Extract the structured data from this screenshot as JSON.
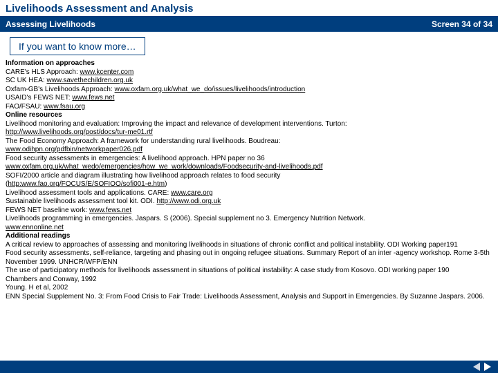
{
  "header": {
    "title": "Livelihoods Assessment and Analysis",
    "subtitle": "Assessing Livelihoods",
    "screen": "Screen 34 of 34"
  },
  "callout": "If you want to know more…",
  "sections": {
    "approaches": {
      "heading": "Information on approaches",
      "items": [
        {
          "label": "CARE's HLS Approach: ",
          "link": "www.kcenter.com"
        },
        {
          "label": "SC UK HEA: ",
          "link": "www.savethechildren.org.uk"
        },
        {
          "label": "Oxfam-GB's Livelihoods Approach: ",
          "link": "www.oxfam.org.uk/what_we_do/issues/livelihoods/introduction"
        },
        {
          "label": "USAID's FEWS NET: ",
          "link": "www.fews.net"
        },
        {
          "label": "FAO/FSAU: ",
          "link": "www.fsau.org"
        }
      ]
    },
    "online": {
      "heading": "Online resources",
      "l1": "Livelihood monitoring and evaluation: Improving the impact and relevance of development interventions. Turton: ",
      "l1link": "http://www.livelihoods.org/post/docs/tur-me01.rtf",
      "l2": "The Food Economy Approach: A framework for understanding rural livelihoods. Boudreau: ",
      "l2link": "www.odihpn.org/pdfbin/networkpaper026.pdf",
      "l3": "Food security assessments in emergencies: A livelihood approach. HPN paper no 36",
      "l3link": "www.oxfam.org.uk/what_wedo/emergencies/how_we_work/downloads/Foodsecurity-and-livelihoods.pdf",
      "l4": "SOFI/2000 article and diagram illustrating how livelihood approach relates to food security",
      "l4l": "(",
      "l4link": "http:www.fao.org/FOCUS/E/SOFIOO/sofi001-e.htm",
      "l4r": ")",
      "l5": "Livelihood assessment tools and applications. CARE: ",
      "l5link": "www.care.org",
      "l6": "Sustainable livelihoods assessment tool kit. ODI. ",
      "l6link": "http://www.odi.org.uk",
      "l7": "FEWS NET baseline work: ",
      "l7link": "www.fews.net",
      "l8": "Livelihoods programming in emergencies. Jaspars. S (2006). Special supplement no 3. Emergency Nutrition Network.",
      "l8link": "www.ennonline.net"
    },
    "readings": {
      "heading": "Additional readings",
      "r1": "A critical review to approaches of assessing and monitoring livelihoods in situations of chronic conflict and political instability. ODI Working paper191",
      "r2": "Food security assessments, self-reliance, targeting and phasing out in ongoing refugee situations. Summary Report of an inter -agency workshop. Rome 3-5th November 1999. UNHCR/WFP/ENN",
      "r3": "The use of participatory methods for livelihoods assessment in situations of political instability: A case study from Kosovo. ODI working paper 190",
      "r4": "Chambers and Conway, 1992",
      "r5": "Young. H et al, 2002",
      "r6": "ENN Special Supplement No. 3:  From Food Crisis to Fair Trade: Livelihoods Assessment, Analysis and Support in Emergencies. By Suzanne Jaspars. 2006."
    }
  }
}
